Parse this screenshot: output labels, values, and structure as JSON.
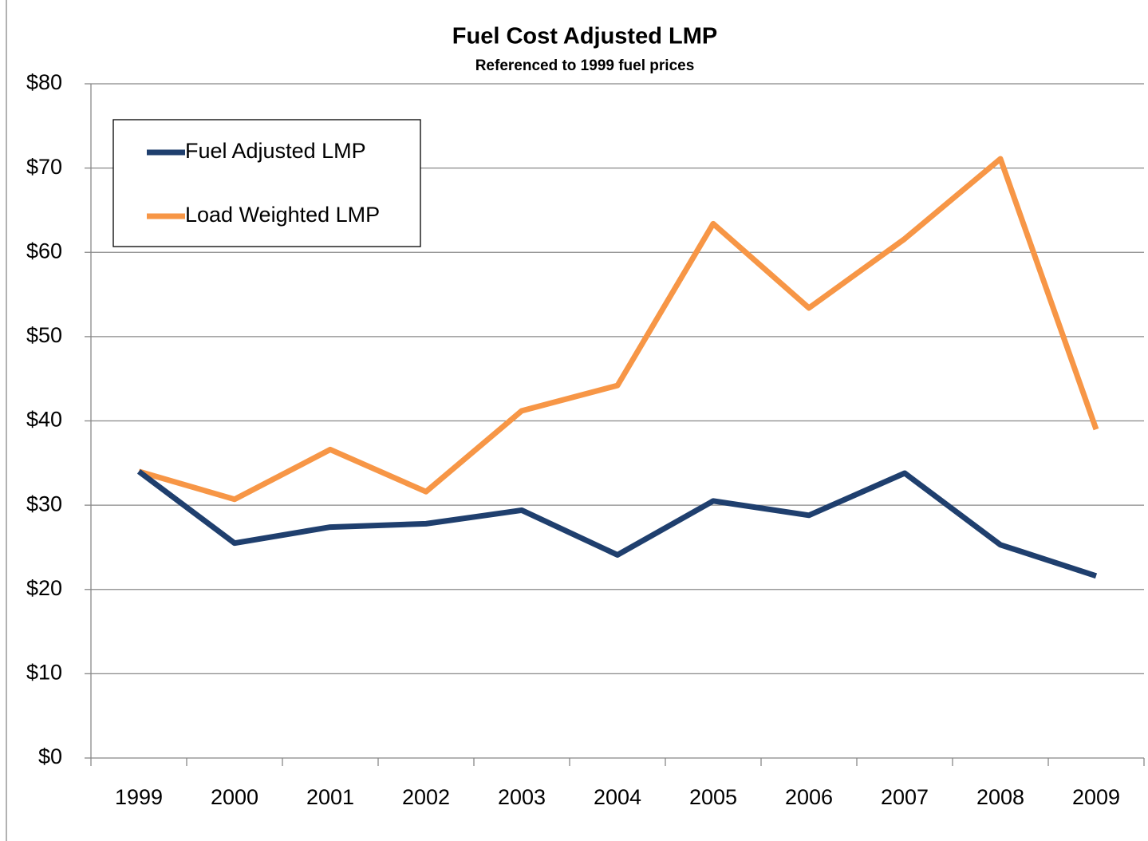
{
  "chart_data": {
    "type": "line",
    "title": "Fuel Cost Adjusted LMP",
    "subtitle": "Referenced to 1999 fuel prices",
    "categories": [
      "1999",
      "2000",
      "2001",
      "2002",
      "2003",
      "2004",
      "2005",
      "2006",
      "2007",
      "2008",
      "2009"
    ],
    "series": [
      {
        "name": "Fuel Adjusted LMP",
        "color": "#1f3f6e",
        "values": [
          34.0,
          25.5,
          27.4,
          27.8,
          29.4,
          24.1,
          30.5,
          28.8,
          33.8,
          25.3,
          21.6
        ]
      },
      {
        "name": "Load Weighted LMP",
        "color": "#f79646",
        "values": [
          34.0,
          30.7,
          36.6,
          31.6,
          41.2,
          44.2,
          63.4,
          53.4,
          61.6,
          71.1,
          39.0
        ]
      }
    ],
    "ylim": [
      0,
      80
    ],
    "yticks": [
      {
        "value": 0,
        "label": "$0"
      },
      {
        "value": 10,
        "label": "$10"
      },
      {
        "value": 20,
        "label": "$20"
      },
      {
        "value": 30,
        "label": "$30"
      },
      {
        "value": 40,
        "label": "$40"
      },
      {
        "value": 50,
        "label": "$50"
      },
      {
        "value": 60,
        "label": "$60"
      },
      {
        "value": 70,
        "label": "$70"
      },
      {
        "value": 80,
        "label": "$80"
      }
    ],
    "grid": true,
    "legend": "upper left"
  }
}
